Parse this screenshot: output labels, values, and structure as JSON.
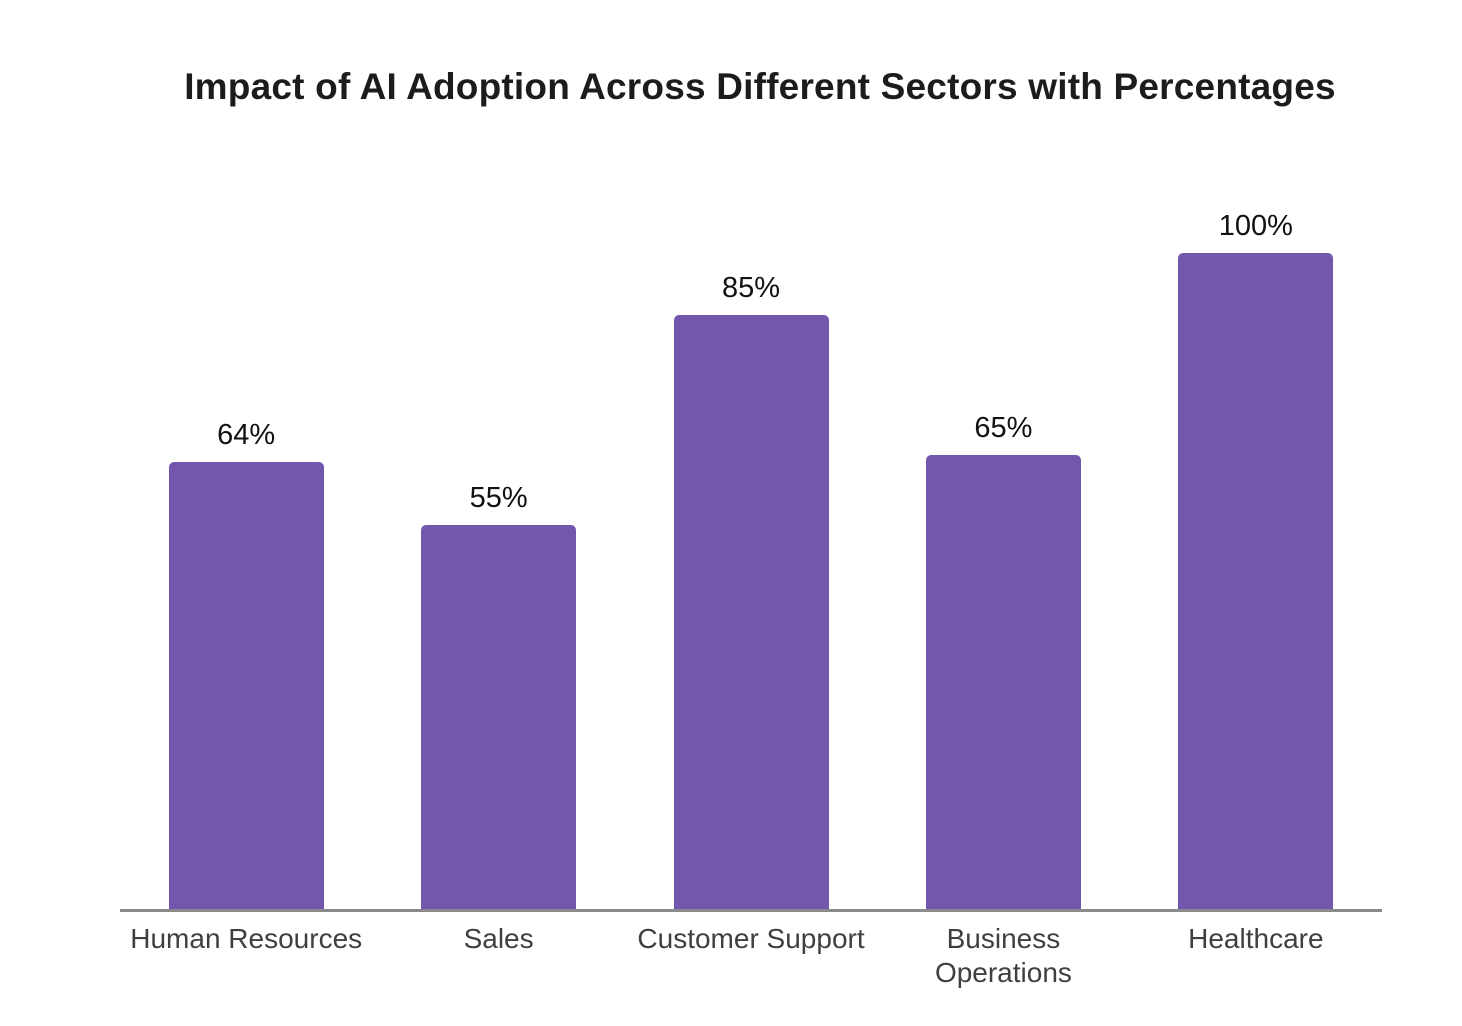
{
  "chart_data": {
    "type": "bar",
    "title": "Impact of AI Adoption Across Different Sectors with Percentages",
    "categories": [
      "Human Resources",
      "Sales",
      "Customer Support",
      "Business Operations",
      "Healthcare"
    ],
    "values": [
      64,
      55,
      85,
      65,
      100
    ],
    "value_labels": [
      "64%",
      "55%",
      "85%",
      "65%",
      "100%"
    ],
    "xlabel": "",
    "ylabel": "",
    "ylim": [
      0,
      100
    ],
    "grid": false,
    "legend": false,
    "y_axis_visible": false,
    "bar_color": "#7257ac",
    "axis_line_color": "#8a8a8a",
    "title_color": "#1c1c1c",
    "value_label_color": "#111111",
    "category_label_color": "#3f3f3f",
    "background_color": "#ffffff"
  }
}
